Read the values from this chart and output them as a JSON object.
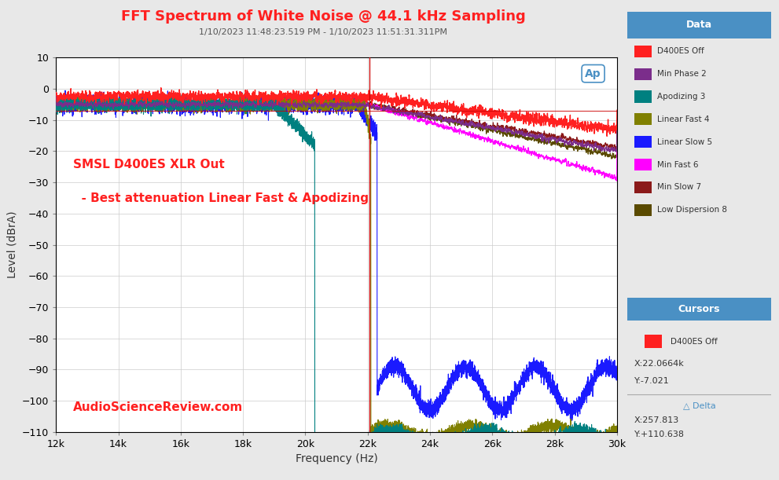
{
  "title": "FFT Spectrum of White Noise @ 44.1 kHz Sampling",
  "subtitle": "1/10/2023 11:48:23.519 PM - 1/10/2023 11:51:31.311PM",
  "xlabel": "Frequency (Hz)",
  "ylabel": "Level (dBrA)",
  "xlim": [
    12000,
    30000
  ],
  "ylim": [
    -110,
    10
  ],
  "annotation_line1": "SMSL D400ES XLR Out",
  "annotation_line2": "  - Best attenuation Linear Fast & Apodizing",
  "watermark": "AudioScienceReview.com",
  "bg_color": "#e8e8e8",
  "plot_bg": "#ffffff",
  "grid_color": "#cccccc",
  "title_color": "#ff2020",
  "subtitle_color": "#555555",
  "annotation_color": "#ff2020",
  "watermark_color": "#ff2020",
  "cursor_x": 22066.4,
  "series": [
    {
      "name": "D400ES Off",
      "color": "#ff2020",
      "lw": 1.0
    },
    {
      "name": "Min Phase 2",
      "color": "#7b2d8b",
      "lw": 0.8
    },
    {
      "name": "Apodizing 3",
      "color": "#008080",
      "lw": 0.8
    },
    {
      "name": "Linear Fast 4",
      "color": "#808000",
      "lw": 0.8
    },
    {
      "name": "Linear Slow 5",
      "color": "#1a1aff",
      "lw": 0.8
    },
    {
      "name": "Min Fast 6",
      "color": "#ff00ff",
      "lw": 0.8
    },
    {
      "name": "Min Slow 7",
      "color": "#8b1a1a",
      "lw": 0.8
    },
    {
      "name": "Low Dispersion 8",
      "color": "#5a4a00",
      "lw": 0.8
    }
  ],
  "legend_header_color": "#4a90c4",
  "legend_bg": "#ffffff",
  "yticks": [
    10,
    0,
    -10,
    -20,
    -30,
    -40,
    -50,
    -60,
    -70,
    -80,
    -90,
    -100,
    -110
  ],
  "xticks": [
    12000,
    14000,
    16000,
    18000,
    20000,
    22000,
    24000,
    26000,
    28000,
    30000
  ]
}
